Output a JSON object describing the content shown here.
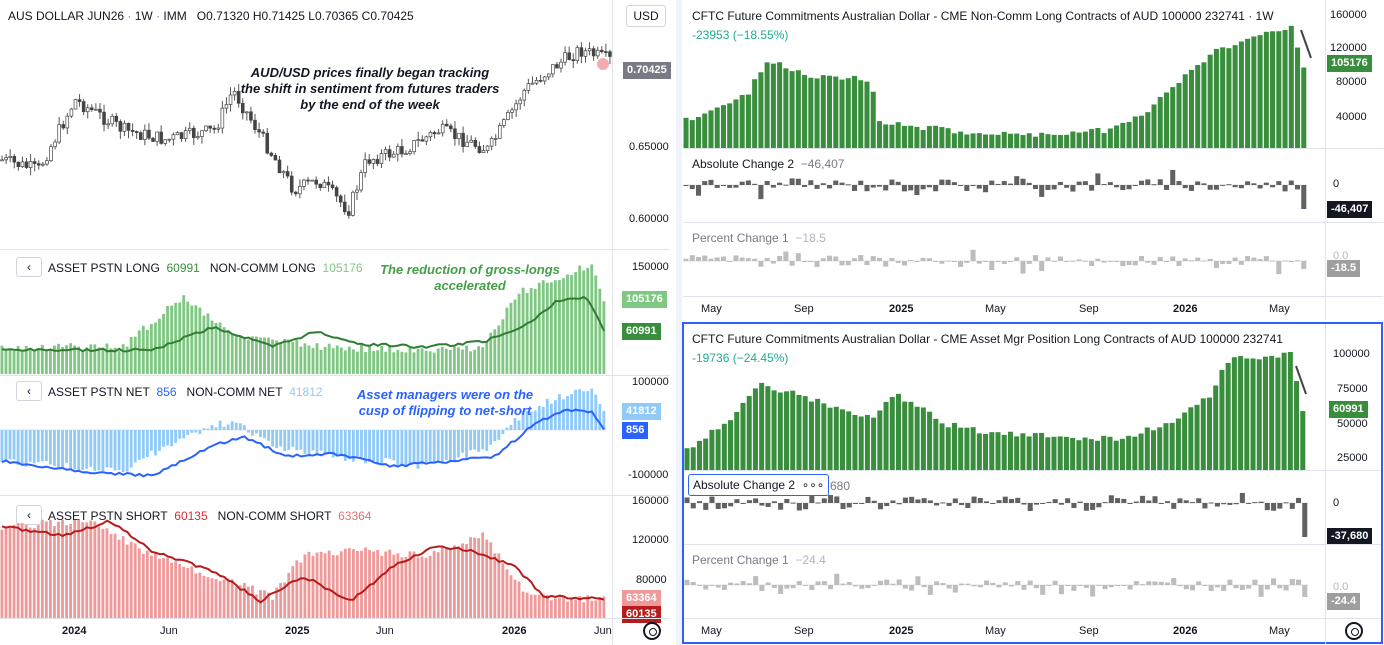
{
  "left": {
    "price": {
      "symbol": "AUS DOLLAR JUN26",
      "interval": "1W",
      "exchange": "IMM",
      "o_label": "O",
      "o": "0.71320",
      "h_label": "H",
      "h": "0.71425",
      "l_label": "L",
      "l": "0.70365",
      "c_label": "C",
      "c": "0.70425",
      "currency": "USD",
      "last_tag": "0.70425",
      "axis": [
        "0.65000",
        "0.60000"
      ],
      "note": "AUD/USD prices finally began tracking the shift in sentiment from futures traders by the end of the week"
    },
    "long": {
      "label": "ASSET PSTN LONG",
      "value": "60991",
      "label2": "NON-COMM LONG",
      "value2": "105176",
      "axis": [
        "150000"
      ],
      "tag_top": "105176",
      "tag_bottom": "60991",
      "note": "The reduction of gross-longs accelerated"
    },
    "net": {
      "label": "ASSET PSTN NET",
      "value": "856",
      "label2": "NON-COMM NET",
      "value2": "41812",
      "axis": [
        "100000",
        "-100000"
      ],
      "tag_top": "41812",
      "tag_bottom": "856",
      "note": "Asset managers were on the cusp of flipping to net-short"
    },
    "short": {
      "label": "ASSET PSTN SHORT",
      "value": "60135",
      "label2": "NON-COMM SHORT",
      "value2": "63364",
      "axis": [
        "160000",
        "120000",
        "80000"
      ],
      "tag_top": "63364",
      "tag_bottom": "60135"
    },
    "time_axis": [
      "2024",
      "Jun",
      "2025",
      "Jun",
      "2026",
      "Jun"
    ]
  },
  "right_top": {
    "title": "CFTC Future Commitments Australian Dollar - CME Non-Comm Long Contracts of AUD 100000 232741 · 1W",
    "change": "-23953 (−18.55%)",
    "axis": [
      "160000",
      "120000",
      "80000",
      "40000"
    ],
    "tag": "105176",
    "abs_label": "Absolute Change 2",
    "abs_value": "−46,407",
    "abs_axis": "0",
    "abs_tag": "-46,407",
    "pct_label": "Percent Change 1",
    "pct_value": "−18.5",
    "pct_axis": "0.0",
    "pct_tag": "-18.5",
    "time_axis": [
      "May",
      "Sep",
      "2025",
      "May",
      "Sep",
      "2026",
      "May"
    ]
  },
  "right_bottom": {
    "title": "CFTC Future Commitments Australian Dollar - CME Asset Mgr Position Long Contracts of AUD 100000 232741",
    "change": "-19736 (−24.45%)",
    "axis": [
      "100000",
      "75000",
      "50000",
      "25000"
    ],
    "tag": "60991",
    "abs_label": "Absolute Change 2",
    "abs_more": "∘∘∘",
    "abs_value": "680",
    "abs_axis": "0",
    "abs_tag": "-37,680",
    "pct_label": "Percent Change 1",
    "pct_value": "−24.4",
    "pct_axis": "0.0",
    "pct_tag": "-24.4",
    "time_axis": [
      "May",
      "Sep",
      "2025",
      "May",
      "Sep",
      "2026",
      "May"
    ]
  },
  "colors": {
    "green": "#22ab94",
    "darkgreen": "#388e3c",
    "lightgreen": "#81c784",
    "blue": "#2962ff",
    "lightblue": "#90caf9",
    "red": "#f23645",
    "darkred": "#b71c1c",
    "lightred": "#ef9a9a",
    "gray": "#787b86",
    "darkgray": "#616161"
  }
}
